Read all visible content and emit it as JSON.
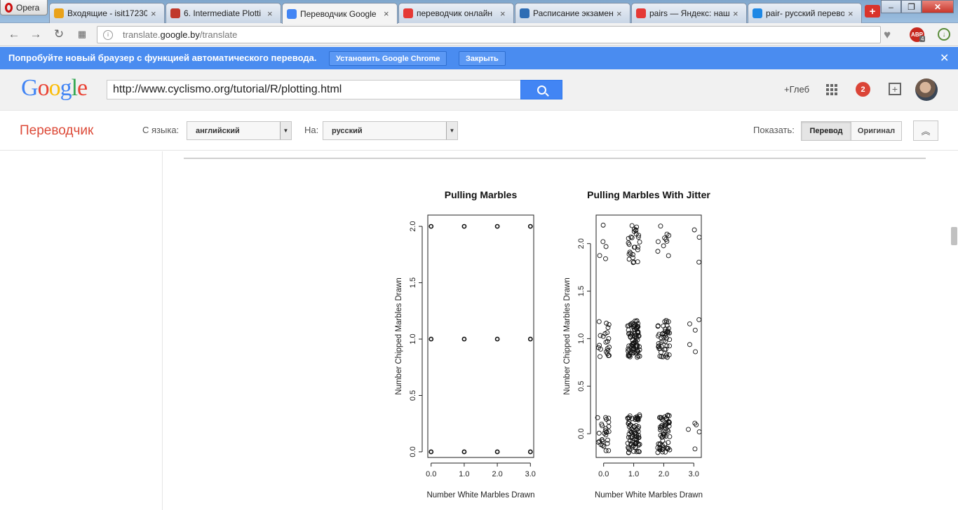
{
  "browser": {
    "opera_label": "Opera",
    "tabs": [
      {
        "title": "Входящие - isit17230",
        "icon": "mail-icon",
        "color": "#e9a21a"
      },
      {
        "title": "6. Intermediate Plotti",
        "icon": "r-icon",
        "color": "#c0392b"
      },
      {
        "title": "Переводчик Google",
        "icon": "translate-icon",
        "color": "#4285f4",
        "active": true
      },
      {
        "title": "переводчик онлайн",
        "icon": "yandex-icon",
        "color": "#e53935"
      },
      {
        "title": "Расписание экзамен",
        "icon": "schedule-icon",
        "color": "#2e6db4"
      },
      {
        "title": "pairs — Яндекс: наш",
        "icon": "yandex-icon",
        "color": "#e53935"
      },
      {
        "title": "pair- русский перево",
        "icon": "dictionary-icon",
        "color": "#1e88e5"
      }
    ],
    "newtab_label": "+",
    "window_buttons": {
      "minimize": "–",
      "maximize": "❐",
      "close": "✕"
    },
    "url_prefix": "translate.",
    "url_domain": "google.by",
    "url_path": "/translate",
    "abp_label": "ABP",
    "abp_count": "4"
  },
  "infobar": {
    "text": "Попробуйте новый браузер с функцией автоматического перевода.",
    "install_label": "Установить Google Chrome",
    "close_label": "Закрыть",
    "dismiss": "✕"
  },
  "google": {
    "logo": [
      "G",
      "o",
      "o",
      "g",
      "l",
      "e"
    ],
    "logo_colors": [
      "#4285f4",
      "#ea4335",
      "#fbbc05",
      "#4285f4",
      "#34a853",
      "#ea4335"
    ],
    "search_value": "http://www.cyclismo.org/tutorial/R/plotting.html",
    "user": "+Глеб",
    "notifications": "2",
    "share_icon": "+"
  },
  "translator": {
    "name": "Переводчик",
    "from_label": "С языка:",
    "from_value": "английский",
    "to_label": "На:",
    "to_value": "русский",
    "show_label": "Показать:",
    "translation_btn": "Перевод",
    "original_btn": "Оригинал",
    "collapse_icon": "︽"
  },
  "chart_data": [
    {
      "type": "scatter",
      "title": "Pulling Marbles",
      "xlabel": "Number White Marbles Drawn",
      "ylabel": "Number Chipped Marbles Drawn",
      "xlim": [
        -0.1,
        3.1
      ],
      "ylim": [
        -0.05,
        2.1
      ],
      "xticks": [
        0.0,
        1.0,
        2.0,
        3.0
      ],
      "xtick_labels": [
        "0.0",
        "1.0",
        "2.0",
        "3.0"
      ],
      "yticks": [
        0.0,
        0.5,
        1.0,
        1.5,
        2.0
      ],
      "ytick_labels": [
        "0.0",
        "0.5",
        "1.0",
        "1.5",
        "2.0"
      ],
      "points": [
        [
          0,
          0
        ],
        [
          1,
          0
        ],
        [
          2,
          0
        ],
        [
          3,
          0
        ],
        [
          0,
          1
        ],
        [
          1,
          1
        ],
        [
          2,
          1
        ],
        [
          3,
          1
        ],
        [
          0,
          2
        ],
        [
          1,
          2
        ],
        [
          2,
          2
        ],
        [
          3,
          2
        ]
      ]
    },
    {
      "type": "scatter",
      "title": "Pulling Marbles With Jitter",
      "xlabel": "Number White Marbles Drawn",
      "ylabel": "Number Chipped Marbles Drawn",
      "xlim": [
        -0.25,
        3.25
      ],
      "ylim": [
        -0.25,
        2.3
      ],
      "xticks": [
        0.0,
        1.0,
        2.0,
        3.0
      ],
      "xtick_labels": [
        "0.0",
        "1.0",
        "2.0",
        "3.0"
      ],
      "yticks": [
        0.0,
        0.5,
        1.0,
        1.5,
        2.0
      ],
      "ytick_labels": [
        "0.0",
        "0.5",
        "1.0",
        "1.5",
        "2.0"
      ],
      "clusters": [
        {
          "x": 0,
          "y": 0,
          "count": 28
        },
        {
          "x": 1,
          "y": 0,
          "count": 80
        },
        {
          "x": 2,
          "y": 0,
          "count": 60
        },
        {
          "x": 3,
          "y": 0,
          "count": 5
        },
        {
          "x": 0,
          "y": 1,
          "count": 22
        },
        {
          "x": 1,
          "y": 1,
          "count": 85
        },
        {
          "x": 2,
          "y": 1,
          "count": 48
        },
        {
          "x": 3,
          "y": 1,
          "count": 5
        },
        {
          "x": 0,
          "y": 2,
          "count": 5
        },
        {
          "x": 1,
          "y": 2,
          "count": 28
        },
        {
          "x": 2,
          "y": 2,
          "count": 10
        },
        {
          "x": 3,
          "y": 2,
          "count": 3
        }
      ],
      "jitter": 0.2
    }
  ]
}
